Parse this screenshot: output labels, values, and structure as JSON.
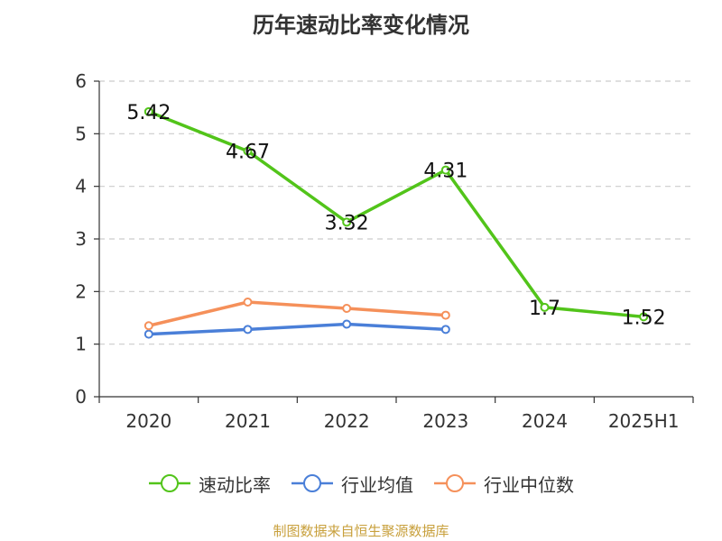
{
  "chart_data": {
    "type": "line",
    "title": "历年速动比率变化情况",
    "categories": [
      "2020",
      "2021",
      "2022",
      "2023",
      "2024",
      "2025H1"
    ],
    "ylim": [
      0,
      6
    ],
    "yticks": [
      "0",
      "1",
      "2",
      "3",
      "4",
      "5",
      "6"
    ],
    "grid": "horizontal dashed",
    "legend_position": "bottom",
    "series": [
      {
        "name": "速动比率",
        "color": "#52c41a",
        "values": [
          5.42,
          4.67,
          3.32,
          4.31,
          1.7,
          1.52
        ],
        "labels": [
          "5.42",
          "4.67",
          "3.32",
          "4.31",
          "1.7",
          "1.52"
        ]
      },
      {
        "name": "行业均值",
        "color": "#4a7fd8",
        "values": [
          1.19,
          1.28,
          1.38,
          1.28,
          null,
          null
        ]
      },
      {
        "name": "行业中位数",
        "color": "#f5905a",
        "values": [
          1.35,
          1.8,
          1.68,
          1.55,
          null,
          null
        ]
      }
    ]
  },
  "source": "制图数据来自恒生聚源数据库"
}
